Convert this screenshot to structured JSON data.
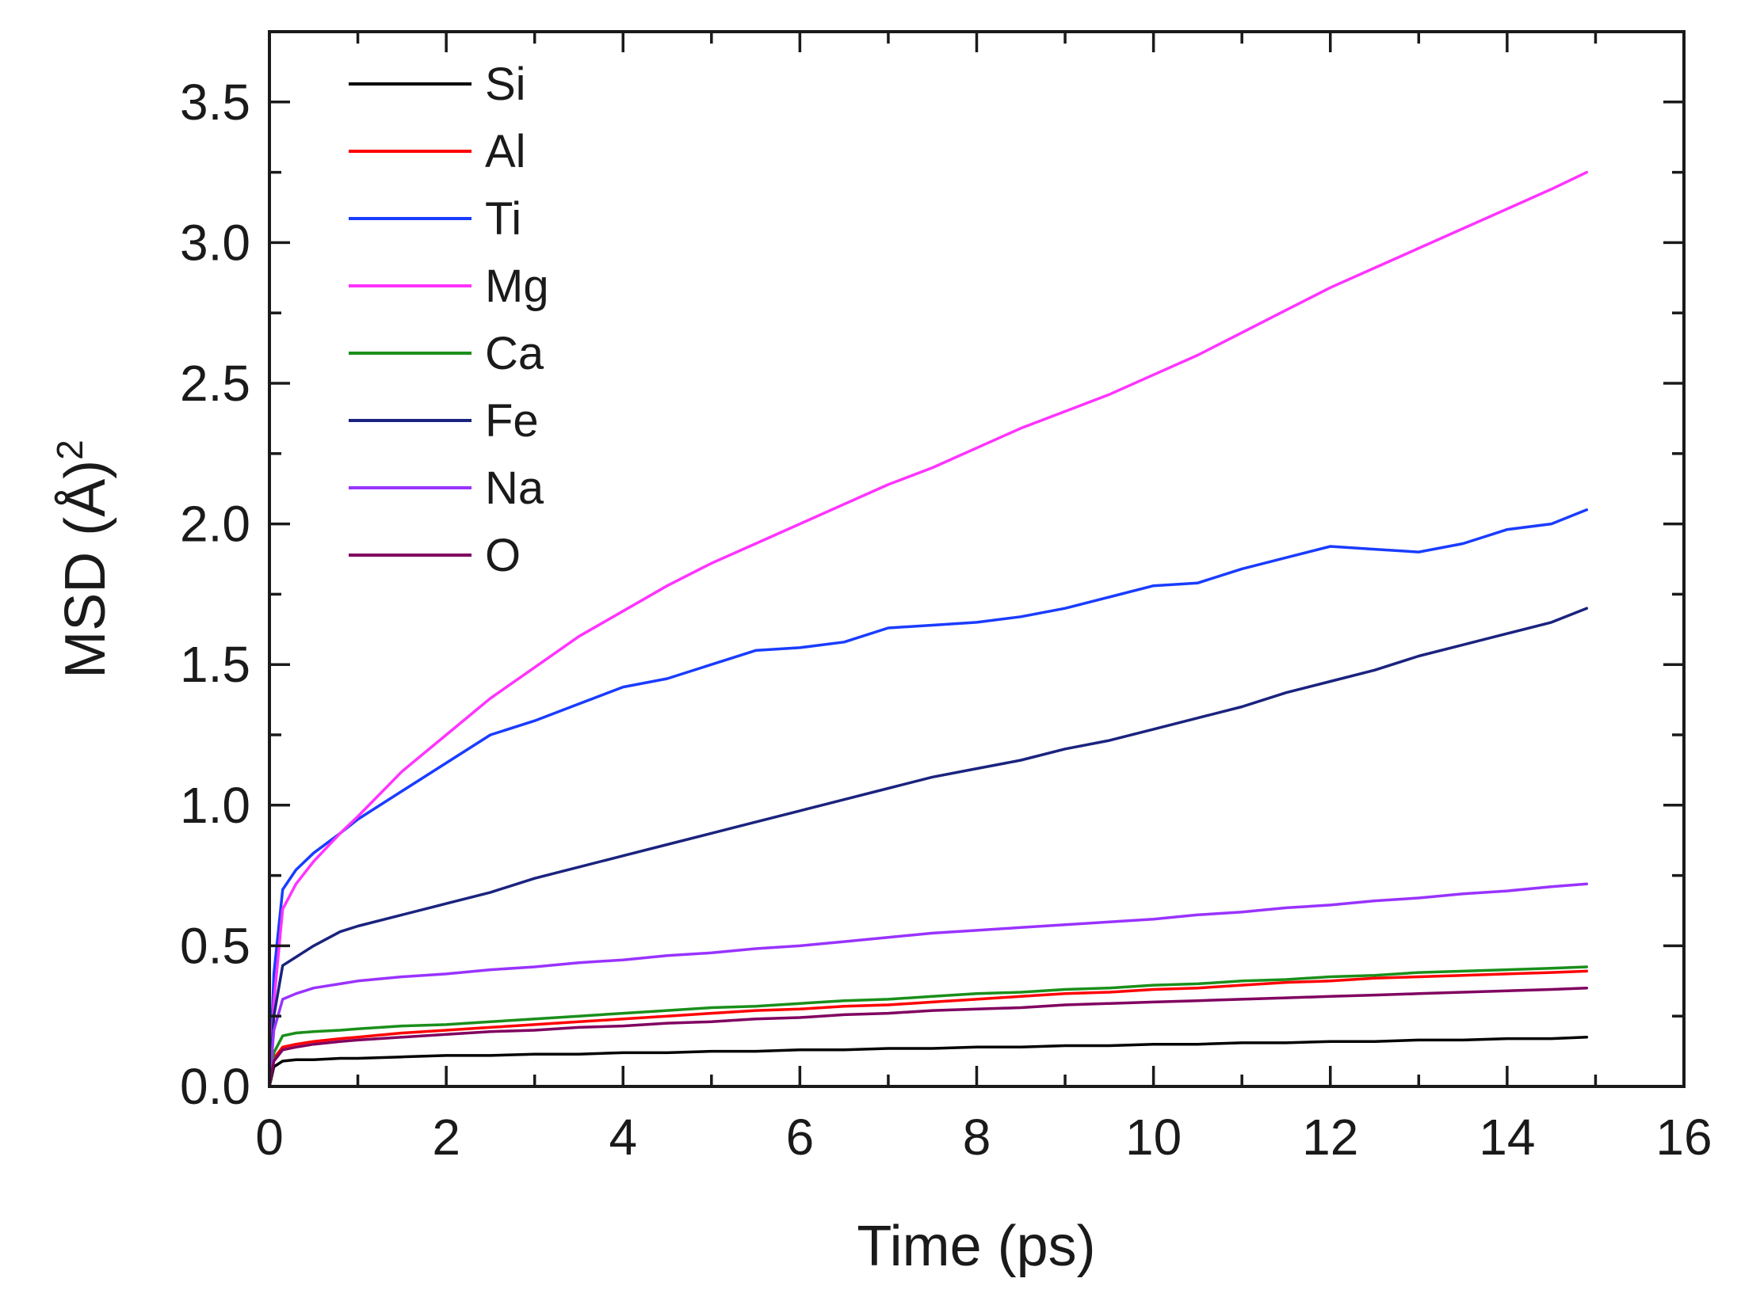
{
  "chart_data": {
    "type": "line",
    "title": "",
    "xlabel": "Time (ps)",
    "ylabel": "MSD (Å)",
    "ylabel_superscript": "2",
    "xlim": [
      0,
      16
    ],
    "ylim": [
      0,
      3.75
    ],
    "x_ticks": [
      0,
      2,
      4,
      6,
      8,
      10,
      12,
      14,
      16
    ],
    "x_tick_labels": [
      "0",
      "2",
      "4",
      "6",
      "8",
      "10",
      "12",
      "14",
      "16"
    ],
    "y_ticks": [
      0,
      0.5,
      1.0,
      1.5,
      2.0,
      2.5,
      3.0,
      3.5
    ],
    "y_tick_labels": [
      "0.0",
      "0.5",
      "1.0",
      "1.5",
      "2.0",
      "2.5",
      "3.0",
      "3.5"
    ],
    "grid": false,
    "legend_position": "top-left",
    "x": [
      0,
      0.05,
      0.15,
      0.3,
      0.5,
      0.8,
      1,
      1.5,
      2,
      2.5,
      3,
      3.5,
      4,
      4.5,
      5,
      5.5,
      6,
      6.5,
      7,
      7.5,
      8,
      8.5,
      9,
      9.5,
      10,
      10.5,
      11,
      11.5,
      12,
      12.5,
      13,
      13.5,
      14,
      14.5,
      14.9
    ],
    "series": [
      {
        "name": "Si",
        "color": "#000000",
        "values": [
          0,
          0.07,
          0.09,
          0.095,
          0.095,
          0.1,
          0.1,
          0.105,
          0.11,
          0.11,
          0.115,
          0.115,
          0.12,
          0.12,
          0.125,
          0.125,
          0.13,
          0.13,
          0.135,
          0.135,
          0.14,
          0.14,
          0.145,
          0.145,
          0.15,
          0.15,
          0.155,
          0.155,
          0.16,
          0.16,
          0.165,
          0.165,
          0.17,
          0.17,
          0.175
        ]
      },
      {
        "name": "Al",
        "color": "#ff0000",
        "values": [
          0,
          0.1,
          0.14,
          0.15,
          0.16,
          0.17,
          0.175,
          0.19,
          0.2,
          0.21,
          0.22,
          0.23,
          0.24,
          0.25,
          0.26,
          0.27,
          0.275,
          0.285,
          0.29,
          0.3,
          0.31,
          0.32,
          0.33,
          0.335,
          0.345,
          0.35,
          0.36,
          0.37,
          0.375,
          0.385,
          0.39,
          0.395,
          0.4,
          0.405,
          0.41
        ]
      },
      {
        "name": "Ti",
        "color": "#1a3cff",
        "values": [
          0,
          0.4,
          0.7,
          0.77,
          0.83,
          0.9,
          0.95,
          1.05,
          1.15,
          1.25,
          1.3,
          1.36,
          1.42,
          1.45,
          1.5,
          1.55,
          1.56,
          1.58,
          1.63,
          1.64,
          1.65,
          1.67,
          1.7,
          1.74,
          1.78,
          1.79,
          1.84,
          1.88,
          1.92,
          1.91,
          1.9,
          1.93,
          1.98,
          2.0,
          2.05
        ]
      },
      {
        "name": "Mg",
        "color": "#ff33ff",
        "values": [
          0,
          0.3,
          0.63,
          0.72,
          0.8,
          0.9,
          0.96,
          1.12,
          1.25,
          1.38,
          1.49,
          1.6,
          1.69,
          1.78,
          1.86,
          1.93,
          2.0,
          2.07,
          2.14,
          2.2,
          2.27,
          2.34,
          2.4,
          2.46,
          2.53,
          2.6,
          2.68,
          2.76,
          2.84,
          2.91,
          2.98,
          3.05,
          3.12,
          3.19,
          3.25
        ]
      },
      {
        "name": "Ca",
        "color": "#1a8f1a",
        "values": [
          0,
          0.12,
          0.18,
          0.19,
          0.195,
          0.2,
          0.205,
          0.215,
          0.22,
          0.23,
          0.24,
          0.25,
          0.26,
          0.27,
          0.28,
          0.285,
          0.295,
          0.305,
          0.31,
          0.32,
          0.33,
          0.335,
          0.345,
          0.35,
          0.36,
          0.365,
          0.375,
          0.38,
          0.39,
          0.395,
          0.405,
          0.41,
          0.415,
          0.42,
          0.425
        ]
      },
      {
        "name": "Fe",
        "color": "#1a237e",
        "values": [
          0,
          0.25,
          0.43,
          0.46,
          0.5,
          0.55,
          0.57,
          0.61,
          0.65,
          0.69,
          0.74,
          0.78,
          0.82,
          0.86,
          0.9,
          0.94,
          0.98,
          1.02,
          1.06,
          1.1,
          1.13,
          1.16,
          1.2,
          1.23,
          1.27,
          1.31,
          1.35,
          1.4,
          1.44,
          1.48,
          1.53,
          1.57,
          1.61,
          1.65,
          1.7
        ]
      },
      {
        "name": "Na",
        "color": "#9933ff",
        "values": [
          0,
          0.2,
          0.31,
          0.33,
          0.35,
          0.365,
          0.375,
          0.39,
          0.4,
          0.415,
          0.425,
          0.44,
          0.45,
          0.465,
          0.475,
          0.49,
          0.5,
          0.515,
          0.53,
          0.545,
          0.555,
          0.565,
          0.575,
          0.585,
          0.595,
          0.61,
          0.62,
          0.635,
          0.645,
          0.66,
          0.67,
          0.685,
          0.695,
          0.71,
          0.72
        ]
      },
      {
        "name": "O",
        "color": "#800060",
        "values": [
          0,
          0.09,
          0.13,
          0.14,
          0.15,
          0.16,
          0.165,
          0.175,
          0.185,
          0.195,
          0.2,
          0.21,
          0.215,
          0.225,
          0.23,
          0.24,
          0.245,
          0.255,
          0.26,
          0.27,
          0.275,
          0.28,
          0.29,
          0.295,
          0.3,
          0.305,
          0.31,
          0.315,
          0.32,
          0.325,
          0.33,
          0.335,
          0.34,
          0.345,
          0.35
        ]
      }
    ]
  }
}
